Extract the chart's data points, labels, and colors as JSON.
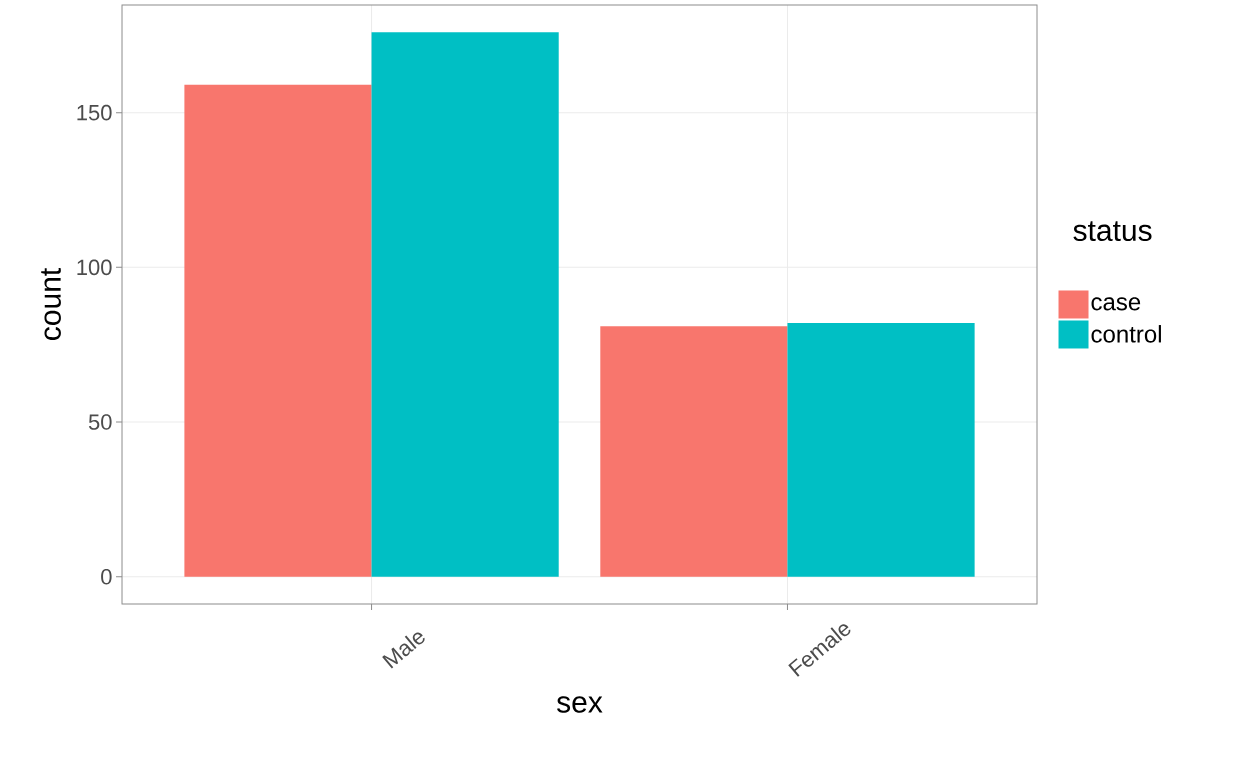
{
  "chart_data": {
    "type": "bar",
    "xlabel": "sex",
    "ylabel": "count",
    "legend_title": "status",
    "categories": [
      "Male",
      "Female"
    ],
    "series": [
      {
        "name": "case",
        "color": "#f8766d",
        "values": [
          159,
          81
        ]
      },
      {
        "name": "control",
        "color": "#00bfc4",
        "values": [
          176,
          82
        ]
      }
    ],
    "ylim": [
      -8.8,
      184.8
    ],
    "yticks": [
      0,
      50,
      100,
      150
    ],
    "grid": true,
    "legend": "right"
  }
}
